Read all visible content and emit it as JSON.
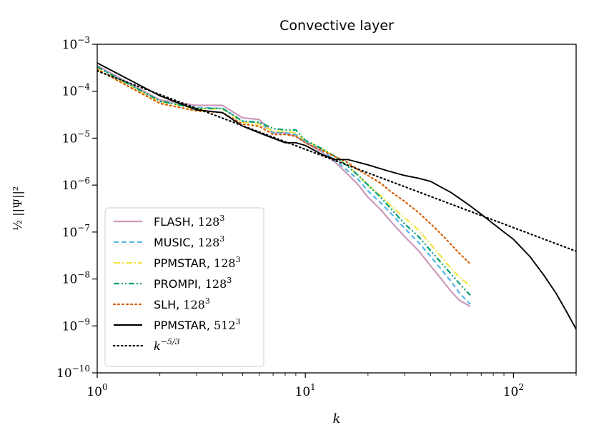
{
  "chart_data": {
    "type": "line",
    "title": "Convective layer",
    "xlabel": "k",
    "ylabel": "½ ||Ψ||²",
    "xscale": "log",
    "yscale": "log",
    "xlim": [
      1,
      200
    ],
    "ylim": [
      1e-10,
      0.001
    ],
    "x_ticks": [
      {
        "value": 1,
        "base": "10",
        "exp": "0"
      },
      {
        "value": 10,
        "base": "10",
        "exp": "1"
      },
      {
        "value": 100,
        "base": "10",
        "exp": "2"
      }
    ],
    "y_ticks": [
      {
        "value": 1e-10,
        "base": "10",
        "exp": "−10"
      },
      {
        "value": 1e-09,
        "base": "10",
        "exp": "−9"
      },
      {
        "value": 1e-08,
        "base": "10",
        "exp": "−8"
      },
      {
        "value": 1e-07,
        "base": "10",
        "exp": "−7"
      },
      {
        "value": 1e-06,
        "base": "10",
        "exp": "−6"
      },
      {
        "value": 1e-05,
        "base": "10",
        "exp": "−5"
      },
      {
        "value": 0.0001,
        "base": "10",
        "exp": "−4"
      },
      {
        "value": 0.001,
        "base": "10",
        "exp": "−3"
      }
    ],
    "legend_position": "lower-left",
    "series": [
      {
        "name": "FLASH, 128",
        "sup": "3",
        "color": "#cc99bb",
        "dash": "solid",
        "points": [
          [
            1,
            0.00035
          ],
          [
            2,
            6.5e-05
          ],
          [
            3,
            5e-05
          ],
          [
            4,
            5e-05
          ],
          [
            5,
            2.7e-05
          ],
          [
            6,
            2.5e-05
          ],
          [
            7,
            1.3e-05
          ],
          [
            8,
            1.3e-05
          ],
          [
            9,
            1.1e-05
          ],
          [
            10,
            8e-06
          ],
          [
            12,
            5e-06
          ],
          [
            14,
            3e-06
          ],
          [
            16,
            1.7e-06
          ],
          [
            18,
            1e-06
          ],
          [
            20,
            5.5e-07
          ],
          [
            23,
            3e-07
          ],
          [
            26,
            1.6e-07
          ],
          [
            30,
            8e-08
          ],
          [
            35,
            4e-08
          ],
          [
            40,
            1.9e-08
          ],
          [
            45,
            1e-08
          ],
          [
            50,
            5.5e-09
          ],
          [
            55,
            3.5e-09
          ],
          [
            62,
            2.6e-09
          ]
        ]
      },
      {
        "name": "MUSIC, 128",
        "sup": "3",
        "color": "#56b4e9",
        "dash": "dashed",
        "points": [
          [
            1,
            0.00033
          ],
          [
            2,
            6e-05
          ],
          [
            3,
            4.5e-05
          ],
          [
            4,
            4.3e-05
          ],
          [
            5,
            2.3e-05
          ],
          [
            6,
            2.1e-05
          ],
          [
            7,
            1.3e-05
          ],
          [
            8,
            1.3e-05
          ],
          [
            9,
            1.2e-05
          ],
          [
            10,
            8.5e-06
          ],
          [
            12,
            5.5e-06
          ],
          [
            14,
            3.3e-06
          ],
          [
            16,
            2e-06
          ],
          [
            18,
            1.3e-06
          ],
          [
            20,
            7.5e-07
          ],
          [
            23,
            4.2e-07
          ],
          [
            26,
            2.4e-07
          ],
          [
            30,
            1.2e-07
          ],
          [
            35,
            6e-08
          ],
          [
            40,
            3e-08
          ],
          [
            45,
            1.6e-08
          ],
          [
            50,
            9e-09
          ],
          [
            55,
            5e-09
          ],
          [
            62,
            2.9e-09
          ]
        ]
      },
      {
        "name": "PPMSTAR, 128",
        "sup": "3",
        "color": "#f0e442",
        "dash": "dashdot",
        "points": [
          [
            1,
            0.0003
          ],
          [
            2,
            6e-05
          ],
          [
            3,
            4.2e-05
          ],
          [
            4,
            4.2e-05
          ],
          [
            5,
            2.2e-05
          ],
          [
            6,
            2e-05
          ],
          [
            7,
            1.4e-05
          ],
          [
            8,
            1.4e-05
          ],
          [
            9,
            1.3e-05
          ],
          [
            10,
            9e-06
          ],
          [
            12,
            6e-06
          ],
          [
            14,
            4e-06
          ],
          [
            16,
            2.5e-06
          ],
          [
            18,
            1.6e-06
          ],
          [
            20,
            1e-06
          ],
          [
            23,
            6e-07
          ],
          [
            26,
            3.5e-07
          ],
          [
            30,
            2e-07
          ],
          [
            35,
            1.1e-07
          ],
          [
            40,
            5.5e-08
          ],
          [
            45,
            3e-08
          ],
          [
            50,
            1.7e-08
          ],
          [
            55,
            1.1e-08
          ],
          [
            62,
            7e-09
          ]
        ]
      },
      {
        "name": "PROMPI, 128",
        "sup": "3",
        "color": "#009e73",
        "dash": "dashdotdot",
        "points": [
          [
            1,
            0.00033
          ],
          [
            2,
            6.2e-05
          ],
          [
            3,
            4.3e-05
          ],
          [
            4,
            4.3e-05
          ],
          [
            5,
            2.3e-05
          ],
          [
            6,
            2.2e-05
          ],
          [
            7,
            1.6e-05
          ],
          [
            8,
            1.5e-05
          ],
          [
            9,
            1.5e-05
          ],
          [
            10,
            9e-06
          ],
          [
            12,
            6e-06
          ],
          [
            14,
            4e-06
          ],
          [
            16,
            2.5e-06
          ],
          [
            18,
            1.6e-06
          ],
          [
            20,
            1e-06
          ],
          [
            23,
            5.5e-07
          ],
          [
            26,
            3e-07
          ],
          [
            30,
            1.5e-07
          ],
          [
            35,
            8e-08
          ],
          [
            40,
            4e-08
          ],
          [
            45,
            2.2e-08
          ],
          [
            50,
            1.3e-08
          ],
          [
            55,
            8e-09
          ],
          [
            62,
            4.5e-09
          ]
        ]
      },
      {
        "name": "SLH, 128",
        "sup": "3",
        "color": "#d55e00",
        "dash": "dotted",
        "points": [
          [
            1,
            0.00029
          ],
          [
            2,
            5.5e-05
          ],
          [
            3,
            3.8e-05
          ],
          [
            4,
            3.5e-05
          ],
          [
            5,
            2e-05
          ],
          [
            6,
            1.8e-05
          ],
          [
            7,
            1.2e-05
          ],
          [
            8,
            1.2e-05
          ],
          [
            9,
            1.1e-05
          ],
          [
            10,
            8e-06
          ],
          [
            12,
            5.5e-06
          ],
          [
            14,
            4e-06
          ],
          [
            16,
            3e-06
          ],
          [
            18,
            2.1e-06
          ],
          [
            20,
            1.6e-06
          ],
          [
            23,
            1.1e-06
          ],
          [
            26,
            7e-07
          ],
          [
            30,
            4.5e-07
          ],
          [
            35,
            2.6e-07
          ],
          [
            40,
            1.5e-07
          ],
          [
            45,
            9e-08
          ],
          [
            50,
            5.5e-08
          ],
          [
            55,
            3.5e-08
          ],
          [
            62,
            2.1e-08
          ]
        ]
      },
      {
        "name": "PPMSTAR, 512",
        "sup": "3",
        "color": "#000000",
        "dash": "solid",
        "points": [
          [
            1,
            0.0004
          ],
          [
            2,
            8e-05
          ],
          [
            3,
            4e-05
          ],
          [
            4,
            3.5e-05
          ],
          [
            5,
            1.8e-05
          ],
          [
            6,
            1.3e-05
          ],
          [
            7,
            1e-05
          ],
          [
            8,
            8e-06
          ],
          [
            9,
            8e-06
          ],
          [
            10,
            7e-06
          ],
          [
            12,
            4.5e-06
          ],
          [
            14,
            3.5e-06
          ],
          [
            16,
            3.5e-06
          ],
          [
            20,
            2.7e-06
          ],
          [
            25,
            2e-06
          ],
          [
            30,
            1.6e-06
          ],
          [
            35,
            1.4e-06
          ],
          [
            40,
            1.2e-06
          ],
          [
            45,
            9e-07
          ],
          [
            50,
            7e-07
          ],
          [
            60,
            4e-07
          ],
          [
            70,
            2.4e-07
          ],
          [
            80,
            1.5e-07
          ],
          [
            90,
            1e-07
          ],
          [
            100,
            7e-08
          ],
          [
            120,
            3e-08
          ],
          [
            140,
            1.2e-08
          ],
          [
            160,
            5e-09
          ],
          [
            180,
            2e-09
          ],
          [
            200,
            8.5e-10
          ]
        ]
      },
      {
        "name": "k",
        "sup": "−5/3",
        "color": "#000000",
        "dash": "fine-dotted",
        "points": [
          [
            1,
            0.00027
          ],
          [
            200,
            3.9e-08
          ]
        ]
      }
    ]
  }
}
